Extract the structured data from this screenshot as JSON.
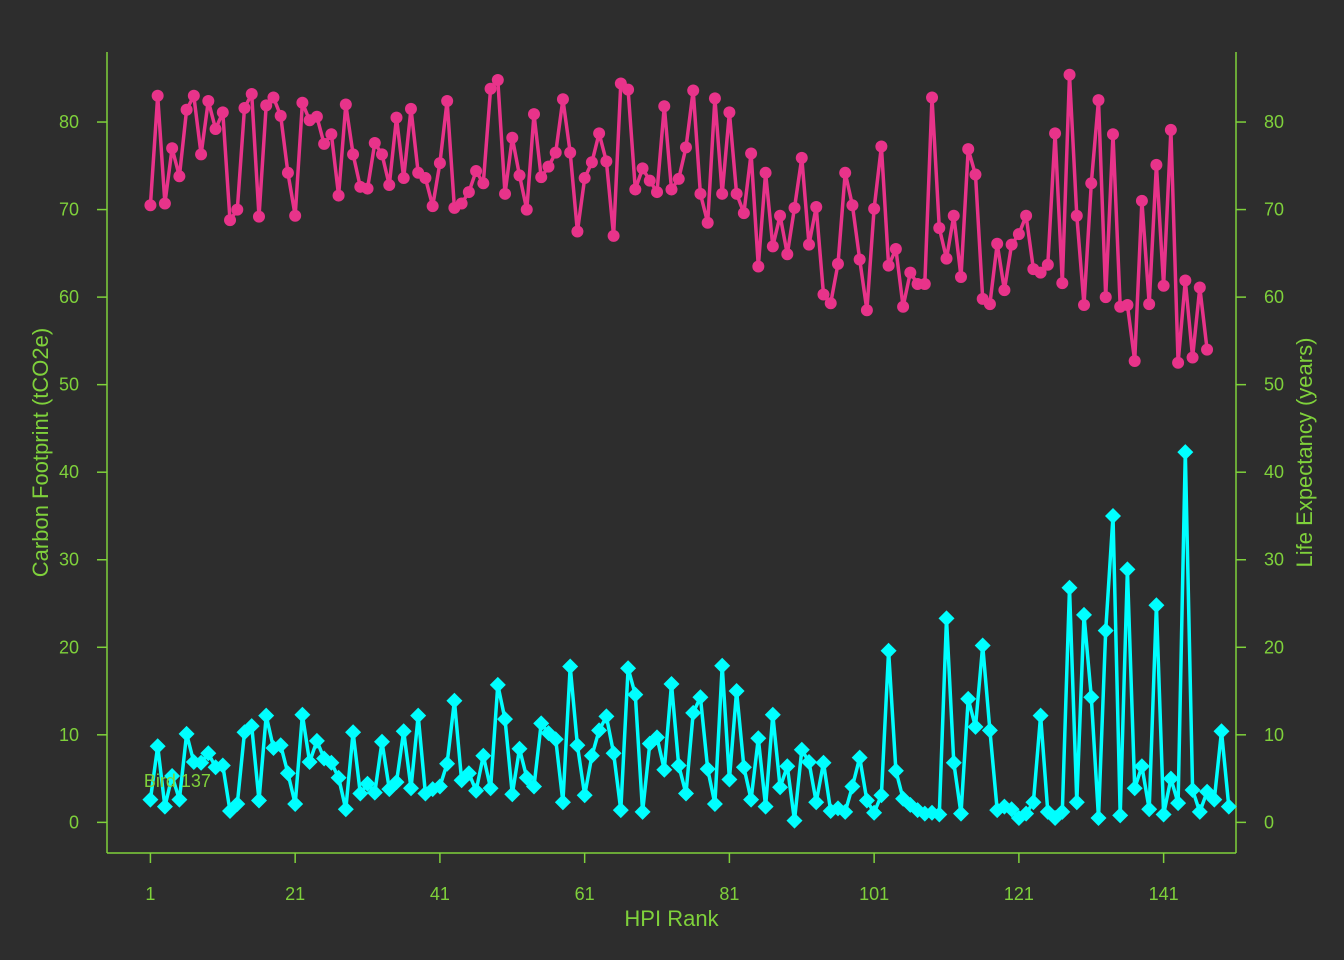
{
  "chart_data": {
    "type": "line",
    "xlabel": "HPI Rank",
    "ylabel_left": "Carbon Footprint (tCO2e)",
    "ylabel_right": "Life Expectancy (years)",
    "xlim": [
      -5,
      151
    ],
    "ylim": [
      -3.5,
      88
    ],
    "x_ticks": [
      1,
      21,
      41,
      61,
      81,
      101,
      121,
      141
    ],
    "y_ticks": [
      0,
      10,
      20,
      30,
      40,
      50,
      60,
      70,
      80
    ],
    "annotation": {
      "text": "Bird 137",
      "x": 3,
      "y": 4.7
    },
    "colors": {
      "background": "#2d2d2d",
      "axis": "#7fd13b",
      "life": "#e8338a",
      "carbon": "#00ffff"
    },
    "series": [
      {
        "key": "life",
        "axis": "right",
        "marker": "circle",
        "values": [
          70.5,
          83,
          70.7,
          77,
          73.8,
          81.4,
          83,
          76.3,
          82.4,
          79.2,
          81.1,
          68.8,
          70,
          81.6,
          83.2,
          69.2,
          81.9,
          82.8,
          80.7,
          74.2,
          69.3,
          82.2,
          80.2,
          80.6,
          77.5,
          78.6,
          71.6,
          82,
          76.3,
          72.6,
          72.4,
          77.6,
          76.3,
          72.8,
          80.5,
          73.6,
          81.5,
          74.2,
          73.6,
          70.4,
          75.3,
          82.4,
          70.2,
          70.7,
          72,
          74.4,
          73,
          83.8,
          84.8,
          71.8,
          78.2,
          73.9,
          70,
          80.9,
          73.7,
          74.9,
          76.5,
          82.6,
          76.5,
          67.5,
          73.6,
          75.4,
          78.7,
          75.5,
          67,
          84.4,
          83.7,
          72.3,
          74.7,
          73.3,
          72,
          81.8,
          72.3,
          73.5,
          77.1,
          83.6,
          71.8,
          68.5,
          82.7,
          71.8,
          81.1,
          71.8,
          69.6,
          76.4,
          63.5,
          74.2,
          65.8,
          69.3,
          64.9,
          70.2,
          75.9,
          66,
          70.3,
          60.3,
          59.3,
          63.8,
          74.2,
          70.5,
          64.3,
          58.5,
          70.1,
          77.2,
          63.6,
          65.5,
          58.9,
          62.8,
          61.5,
          61.5,
          82.8,
          67.9,
          64.4,
          69.3,
          62.3,
          76.9,
          74,
          59.8,
          59.2,
          66.1,
          60.8,
          66,
          67.2,
          69.3,
          63.2,
          62.8,
          63.7,
          78.7,
          61.6,
          85.4,
          69.3,
          59.1,
          73,
          82.5,
          60,
          78.6,
          58.9,
          59.1,
          52.7,
          71,
          59.2,
          75.1,
          61.3,
          79.1,
          52.5,
          61.9,
          53.1,
          61.1,
          54
        ]
      },
      {
        "key": "carbon",
        "axis": "left",
        "marker": "diamond",
        "values": [
          2.6,
          8.7,
          1.8,
          5.3,
          2.6,
          10.1,
          6.9,
          6.8,
          7.9,
          6.3,
          6.5,
          1.3,
          2.1,
          10.3,
          11,
          2.5,
          12.2,
          8.5,
          8.8,
          5.6,
          2.1,
          12.3,
          6.9,
          9.3,
          7.3,
          6.8,
          5.1,
          1.5,
          10.3,
          3.3,
          4.4,
          3.4,
          9.2,
          3.8,
          4.6,
          10.4,
          3.9,
          12.2,
          3.3,
          3.8,
          4.1,
          6.7,
          13.9,
          4.8,
          5.6,
          3.6,
          7.6,
          3.9,
          15.7,
          11.8,
          3.2,
          8.4,
          5.1,
          4.1,
          11.3,
          10.2,
          9.5,
          2.3,
          17.8,
          8.8,
          3.1,
          7.6,
          10.5,
          12.1,
          7.9,
          1.4,
          17.6,
          14.6,
          1.2,
          9,
          9.7,
          6,
          15.8,
          6.5,
          3.3,
          12.5,
          14.3,
          6.1,
          2.1,
          17.9,
          4.9,
          15,
          6.3,
          2.6,
          9.6,
          1.8,
          12.3,
          4,
          6.4,
          0.2,
          8.3,
          6.9,
          2.3,
          6.8,
          1.3,
          1.6,
          1.2,
          4.1,
          7.4,
          2.5,
          1.1,
          3.1,
          19.6,
          5.9,
          2.7,
          2,
          1.4,
          1,
          1.1,
          0.9,
          23.3,
          6.8,
          1,
          14.1,
          10.9,
          20.2,
          10.5,
          1.4,
          1.8,
          1.5,
          0.5,
          1,
          2.3,
          12.2,
          1.2,
          0.5,
          1.2,
          26.8,
          2.3,
          23.7,
          14.3,
          0.5,
          21.9,
          35,
          0.8,
          28.9,
          3.9,
          6.4,
          1.5,
          24.8,
          0.9,
          5,
          2.2,
          42.3,
          3.7,
          1.2,
          3.5,
          2.6,
          10.4,
          1.8
        ]
      }
    ]
  }
}
